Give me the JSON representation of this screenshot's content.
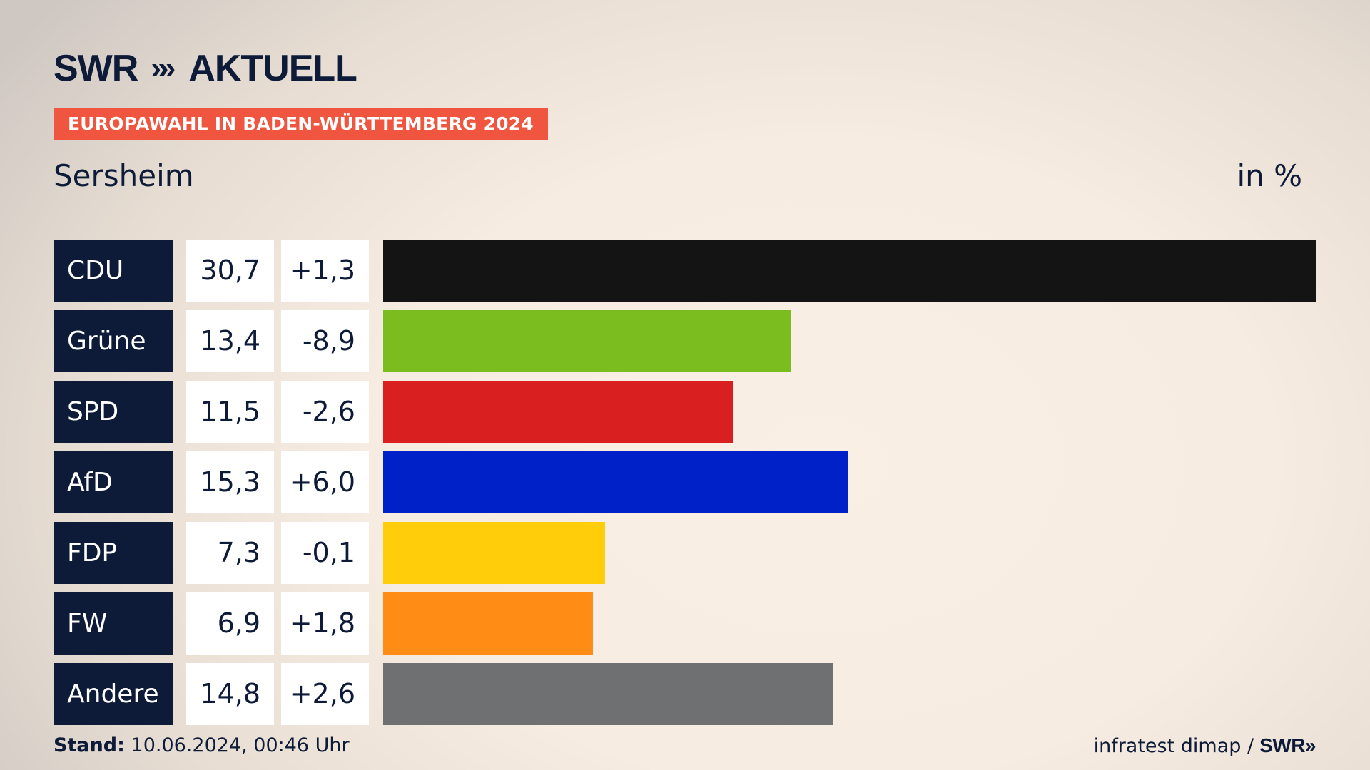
{
  "brand": {
    "name": "SWR",
    "chevrons": "»",
    "product": "AKTUELL"
  },
  "banner": "EUROPAWAHL IN BADEN-WÜRTTEMBERG 2024",
  "place": "Sersheim",
  "unit": "in %",
  "footer": {
    "stand_label": "Stand:",
    "stand_value": "10.06.2024, 00:46 Uhr",
    "source": "infratest dimap /",
    "source_brand": "SWR»"
  },
  "chart_data": {
    "type": "bar",
    "orientation": "horizontal",
    "categories": [
      "CDU",
      "Grüne",
      "SPD",
      "AfD",
      "FDP",
      "FW",
      "Andere"
    ],
    "values": [
      30.7,
      13.4,
      11.5,
      15.3,
      7.3,
      6.9,
      14.8
    ],
    "value_labels": [
      "30,7",
      "13,4",
      "11,5",
      "15,3",
      "7,3",
      "6,9",
      "14,8"
    ],
    "changes": [
      1.3,
      -8.9,
      -2.6,
      6.0,
      -0.1,
      1.8,
      2.6
    ],
    "change_labels": [
      "+1,3",
      "-8,9",
      "-2,6",
      "+6,0",
      "-0,1",
      "+1,8",
      "+2,6"
    ],
    "colors": [
      "#141414",
      "#7bbd1e",
      "#d91f1f",
      "#0020c8",
      "#ffcd0a",
      "#ff8c14",
      "#6f7072"
    ],
    "xlim": [
      0,
      30.7
    ],
    "grid": false
  }
}
